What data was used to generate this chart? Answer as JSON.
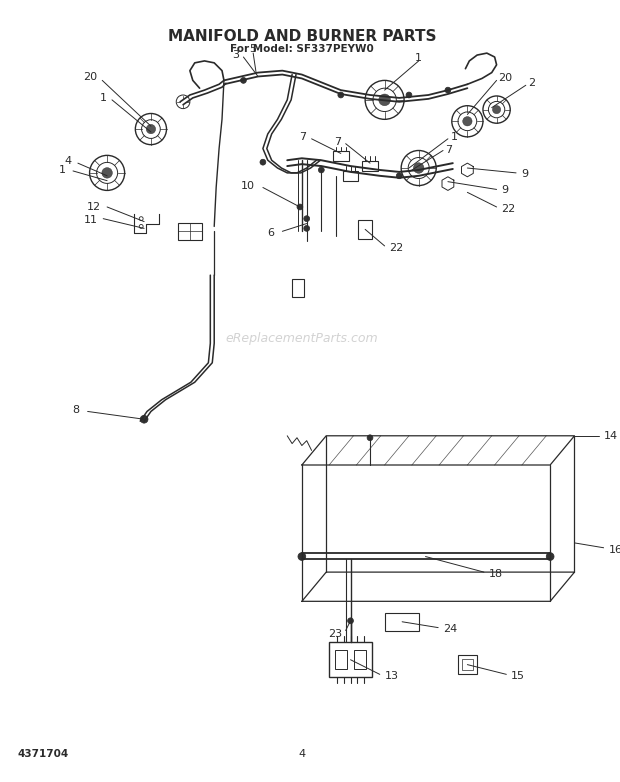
{
  "title": "MANIFOLD AND BURNER PARTS",
  "subtitle": "For Model: SF337PEYW0",
  "bg_color": "#ffffff",
  "line_color": "#2a2a2a",
  "watermark": "eReplacementParts.com",
  "doc_number": "4371704",
  "page_number": "4",
  "title_fontsize": 11,
  "subtitle_fontsize": 7.5,
  "label_fontsize": 8,
  "footer_fontsize": 7.5
}
